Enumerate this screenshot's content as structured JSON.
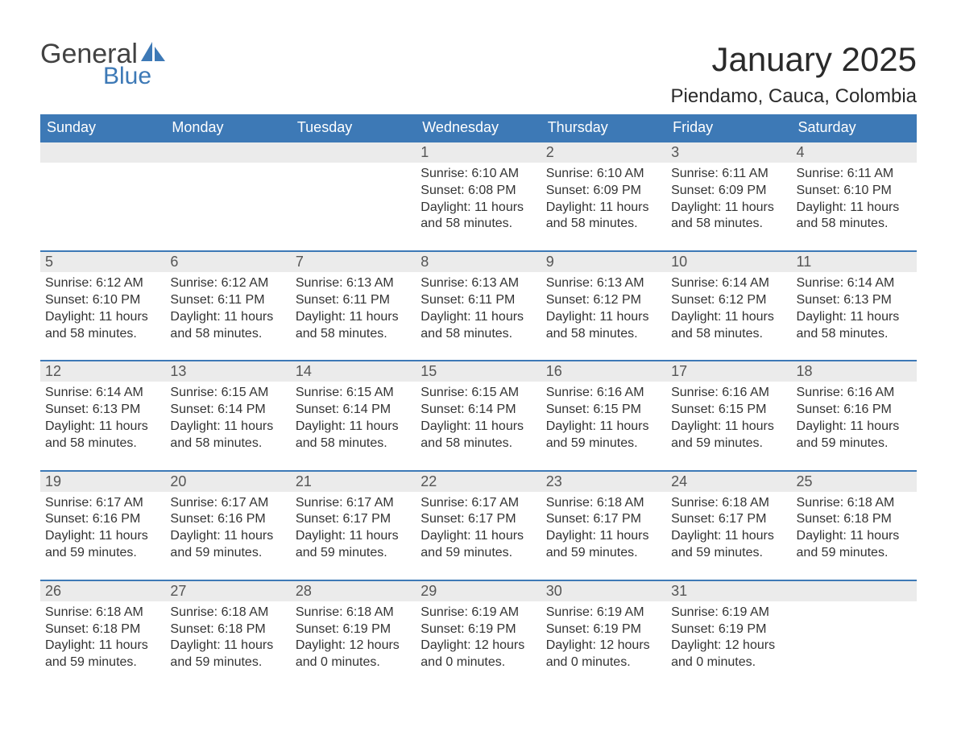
{
  "logo": {
    "word1": "General",
    "word2": "Blue",
    "accent_color": "#3d79b6"
  },
  "title": "January 2025",
  "location": "Piendamo, Cauca, Colombia",
  "colors": {
    "header_bg": "#3d79b6",
    "header_text": "#ffffff",
    "row_accent": "#3d79b6",
    "daynum_bg": "#ebebeb",
    "text": "#333333",
    "page_bg": "#ffffff"
  },
  "typography": {
    "month_title_fontsize": 42,
    "location_fontsize": 24,
    "dayname_fontsize": 18,
    "daynum_fontsize": 18,
    "cell_fontsize": 16
  },
  "layout": {
    "columns": 7,
    "rows": 5,
    "first_day_column": 3,
    "days_in_month": 31
  },
  "daynames": [
    "Sunday",
    "Monday",
    "Tuesday",
    "Wednesday",
    "Thursday",
    "Friday",
    "Saturday"
  ],
  "labels": {
    "sunrise": "Sunrise:",
    "sunset": "Sunset:",
    "daylight": "Daylight:"
  },
  "days": [
    {
      "n": 1,
      "sr": "6:10 AM",
      "ss": "6:08 PM",
      "dl": "11 hours and 58 minutes."
    },
    {
      "n": 2,
      "sr": "6:10 AM",
      "ss": "6:09 PM",
      "dl": "11 hours and 58 minutes."
    },
    {
      "n": 3,
      "sr": "6:11 AM",
      "ss": "6:09 PM",
      "dl": "11 hours and 58 minutes."
    },
    {
      "n": 4,
      "sr": "6:11 AM",
      "ss": "6:10 PM",
      "dl": "11 hours and 58 minutes."
    },
    {
      "n": 5,
      "sr": "6:12 AM",
      "ss": "6:10 PM",
      "dl": "11 hours and 58 minutes."
    },
    {
      "n": 6,
      "sr": "6:12 AM",
      "ss": "6:11 PM",
      "dl": "11 hours and 58 minutes."
    },
    {
      "n": 7,
      "sr": "6:13 AM",
      "ss": "6:11 PM",
      "dl": "11 hours and 58 minutes."
    },
    {
      "n": 8,
      "sr": "6:13 AM",
      "ss": "6:11 PM",
      "dl": "11 hours and 58 minutes."
    },
    {
      "n": 9,
      "sr": "6:13 AM",
      "ss": "6:12 PM",
      "dl": "11 hours and 58 minutes."
    },
    {
      "n": 10,
      "sr": "6:14 AM",
      "ss": "6:12 PM",
      "dl": "11 hours and 58 minutes."
    },
    {
      "n": 11,
      "sr": "6:14 AM",
      "ss": "6:13 PM",
      "dl": "11 hours and 58 minutes."
    },
    {
      "n": 12,
      "sr": "6:14 AM",
      "ss": "6:13 PM",
      "dl": "11 hours and 58 minutes."
    },
    {
      "n": 13,
      "sr": "6:15 AM",
      "ss": "6:14 PM",
      "dl": "11 hours and 58 minutes."
    },
    {
      "n": 14,
      "sr": "6:15 AM",
      "ss": "6:14 PM",
      "dl": "11 hours and 58 minutes."
    },
    {
      "n": 15,
      "sr": "6:15 AM",
      "ss": "6:14 PM",
      "dl": "11 hours and 58 minutes."
    },
    {
      "n": 16,
      "sr": "6:16 AM",
      "ss": "6:15 PM",
      "dl": "11 hours and 59 minutes."
    },
    {
      "n": 17,
      "sr": "6:16 AM",
      "ss": "6:15 PM",
      "dl": "11 hours and 59 minutes."
    },
    {
      "n": 18,
      "sr": "6:16 AM",
      "ss": "6:16 PM",
      "dl": "11 hours and 59 minutes."
    },
    {
      "n": 19,
      "sr": "6:17 AM",
      "ss": "6:16 PM",
      "dl": "11 hours and 59 minutes."
    },
    {
      "n": 20,
      "sr": "6:17 AM",
      "ss": "6:16 PM",
      "dl": "11 hours and 59 minutes."
    },
    {
      "n": 21,
      "sr": "6:17 AM",
      "ss": "6:17 PM",
      "dl": "11 hours and 59 minutes."
    },
    {
      "n": 22,
      "sr": "6:17 AM",
      "ss": "6:17 PM",
      "dl": "11 hours and 59 minutes."
    },
    {
      "n": 23,
      "sr": "6:18 AM",
      "ss": "6:17 PM",
      "dl": "11 hours and 59 minutes."
    },
    {
      "n": 24,
      "sr": "6:18 AM",
      "ss": "6:17 PM",
      "dl": "11 hours and 59 minutes."
    },
    {
      "n": 25,
      "sr": "6:18 AM",
      "ss": "6:18 PM",
      "dl": "11 hours and 59 minutes."
    },
    {
      "n": 26,
      "sr": "6:18 AM",
      "ss": "6:18 PM",
      "dl": "11 hours and 59 minutes."
    },
    {
      "n": 27,
      "sr": "6:18 AM",
      "ss": "6:18 PM",
      "dl": "11 hours and 59 minutes."
    },
    {
      "n": 28,
      "sr": "6:18 AM",
      "ss": "6:19 PM",
      "dl": "12 hours and 0 minutes."
    },
    {
      "n": 29,
      "sr": "6:19 AM",
      "ss": "6:19 PM",
      "dl": "12 hours and 0 minutes."
    },
    {
      "n": 30,
      "sr": "6:19 AM",
      "ss": "6:19 PM",
      "dl": "12 hours and 0 minutes."
    },
    {
      "n": 31,
      "sr": "6:19 AM",
      "ss": "6:19 PM",
      "dl": "12 hours and 0 minutes."
    }
  ]
}
